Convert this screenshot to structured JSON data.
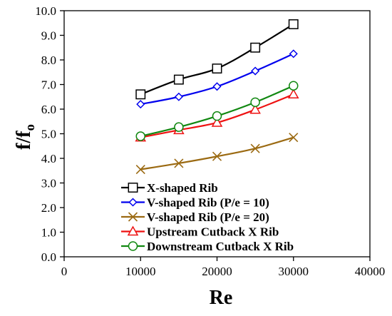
{
  "chart_data": {
    "type": "line",
    "xlabel": "Re",
    "ylabel_main": "f/f",
    "ylabel_sub": "o",
    "xlim": [
      0,
      40000
    ],
    "ylim": [
      0,
      10
    ],
    "x_ticks": [
      0,
      10000,
      20000,
      30000,
      40000
    ],
    "x_tick_labels": [
      "0",
      "10000",
      "20000",
      "30000",
      "40000"
    ],
    "y_ticks": [
      0,
      1,
      2,
      3,
      4,
      5,
      6,
      7,
      8,
      9,
      10
    ],
    "y_tick_labels": [
      "0.0",
      "1.0",
      "2.0",
      "3.0",
      "4.0",
      "5.0",
      "6.0",
      "7.0",
      "8.0",
      "9.0",
      "10.0"
    ],
    "grid": false,
    "legend_position": "bottom-center",
    "x": [
      10000,
      15000,
      20000,
      25000,
      30000
    ],
    "series": [
      {
        "name": "X-shaped Rib",
        "color": "#000000",
        "marker": "square",
        "values": [
          6.6,
          7.2,
          7.65,
          8.5,
          9.45
        ]
      },
      {
        "name": "V-shaped Rib (P/e = 10)",
        "color": "#0000ee",
        "marker": "diamond",
        "values": [
          6.2,
          6.5,
          6.92,
          7.55,
          8.25
        ]
      },
      {
        "name": "V-shaped Rib (P/e = 20)",
        "color": "#9b6a12",
        "marker": "x",
        "values": [
          3.55,
          3.8,
          4.08,
          4.4,
          4.85
        ]
      },
      {
        "name": "Upstream Cutback X Rib",
        "color": "#ee1111",
        "marker": "triangle",
        "values": [
          4.85,
          5.15,
          5.45,
          5.98,
          6.6
        ]
      },
      {
        "name": "Downstream Cutback X Rib",
        "color": "#118811",
        "marker": "circle",
        "values": [
          4.9,
          5.27,
          5.72,
          6.28,
          6.95
        ]
      }
    ]
  }
}
